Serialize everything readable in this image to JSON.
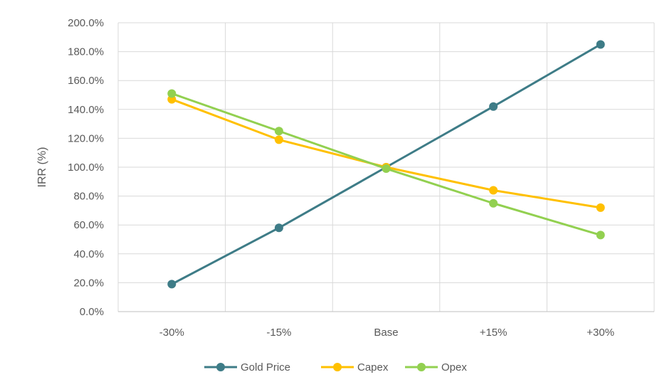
{
  "chart_data": {
    "type": "line",
    "title": "",
    "xlabel": "",
    "ylabel": "IRR (%)",
    "categories": [
      "-30%",
      "-15%",
      "Base",
      "+15%",
      "+30%"
    ],
    "ylim": [
      0,
      200
    ],
    "y_ticks": [
      "0.0%",
      "20.0%",
      "40.0%",
      "60.0%",
      "80.0%",
      "100.0%",
      "120.0%",
      "140.0%",
      "160.0%",
      "180.0%",
      "200.0%"
    ],
    "grid": true,
    "legend_position": "bottom",
    "series": [
      {
        "name": "Gold Price",
        "color": "#3e7c87",
        "values": [
          19,
          58,
          100,
          142,
          185
        ]
      },
      {
        "name": "Capex",
        "color": "#ffc000",
        "values": [
          147,
          119,
          100,
          84,
          72
        ]
      },
      {
        "name": "Opex",
        "color": "#92d050",
        "values": [
          151,
          125,
          99,
          75,
          53
        ]
      }
    ]
  }
}
